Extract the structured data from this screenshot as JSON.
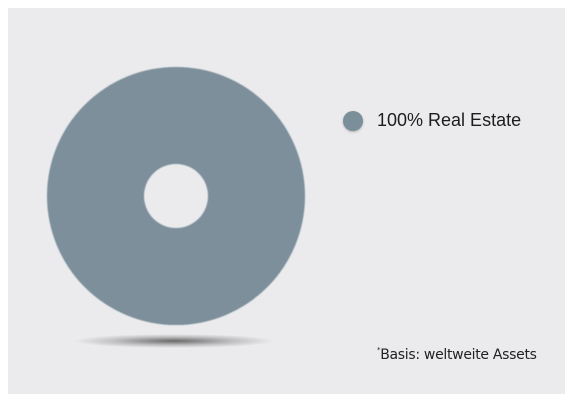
{
  "chart_data": {
    "type": "pie",
    "variant": "donut",
    "slices": [
      {
        "label": "100% Real Estate",
        "value": 100,
        "color": "#7b8f9b"
      }
    ],
    "legend": {
      "placement": "right",
      "entries": [
        "100% Real Estate"
      ]
    },
    "footnote": {
      "marker": "*",
      "text": "Basis: weltweite Assets"
    }
  },
  "colors": {
    "background": "#ebebed",
    "slice": "#7b8f9b",
    "text": "#1c1c1c"
  }
}
